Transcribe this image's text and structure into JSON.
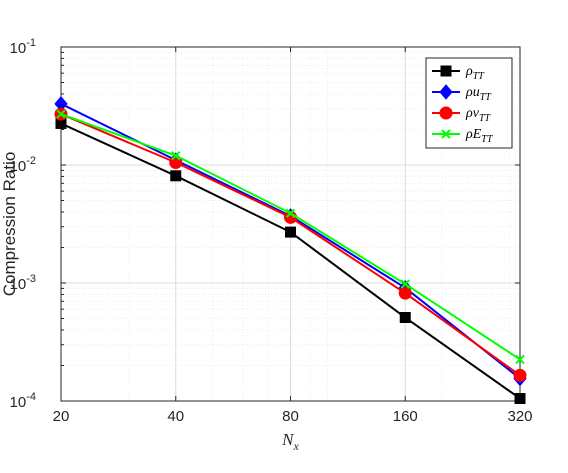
{
  "chart_data": {
    "type": "line",
    "xscale": "log",
    "yscale": "log",
    "xlim": [
      20,
      320
    ],
    "ylim": [
      0.0001,
      0.1
    ],
    "grid": true,
    "minor_grid": true,
    "legend_position": "top-right",
    "xlabel": {
      "base": "N",
      "sub": "x"
    },
    "ylabel": "Compression Ratio",
    "xticks": [
      {
        "value": 20,
        "label": "20"
      },
      {
        "value": 40,
        "label": "40"
      },
      {
        "value": 80,
        "label": "80"
      },
      {
        "value": 160,
        "label": "160"
      },
      {
        "value": 320,
        "label": "320"
      }
    ],
    "yticks": [
      {
        "value": 0.0001,
        "base": "10",
        "exp": "-4"
      },
      {
        "value": 0.001,
        "base": "10",
        "exp": "-3"
      },
      {
        "value": 0.01,
        "base": "10",
        "exp": "-2"
      },
      {
        "value": 0.1,
        "base": "10",
        "exp": "-1"
      }
    ],
    "x": [
      20,
      40,
      80,
      160,
      320
    ],
    "series": [
      {
        "name": "ρ",
        "sub": "TT",
        "color": "#000000",
        "marker": "square",
        "values": [
          0.0225,
          0.0081,
          0.0027,
          0.00051,
          0.000105
        ]
      },
      {
        "name": "ρu",
        "sub": "TT",
        "color": "#0000ff",
        "marker": "diamond",
        "values": [
          0.033,
          0.011,
          0.0037,
          0.00091,
          0.000155
        ]
      },
      {
        "name": "ρv",
        "sub": "TT",
        "color": "#ff0000",
        "marker": "circle",
        "values": [
          0.027,
          0.0105,
          0.0036,
          0.00082,
          0.000165
        ]
      },
      {
        "name": "ρE",
        "sub": "TT",
        "color": "#00ff00",
        "marker": "x",
        "values": [
          0.027,
          0.012,
          0.0039,
          0.00098,
          0.000225
        ]
      }
    ]
  }
}
